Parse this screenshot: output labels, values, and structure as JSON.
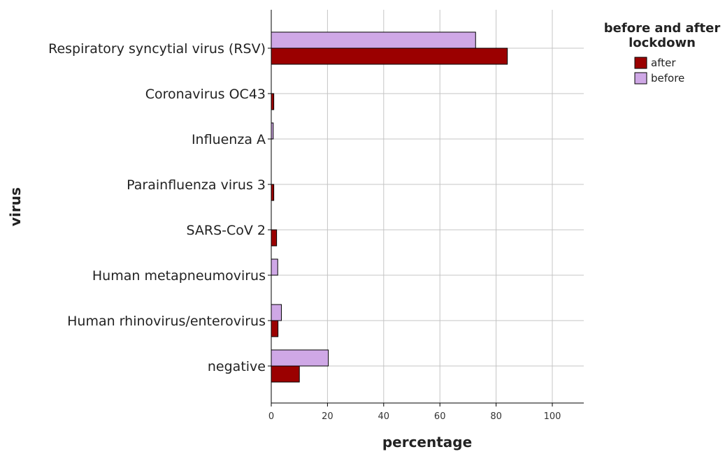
{
  "chart_data": {
    "type": "bar",
    "orientation": "horizontal",
    "title": "",
    "xlabel": "percentage",
    "ylabel": "virus",
    "xlim": [
      0,
      110
    ],
    "xticks": [
      "0",
      "20",
      "40",
      "60",
      "80",
      "100"
    ],
    "grid": true,
    "categories": [
      "Respiratory syncytial virus (RSV)",
      "Coronavirus OC43",
      "Influenza A",
      "Parainfluenza virus 3",
      "SARS-CoV 2",
      "Human metapneumovirus",
      "Human rhinovirus/enterovirus",
      "negative"
    ],
    "series": [
      {
        "name": "before",
        "color": "#cfa8e6",
        "values": [
          72.7,
          0,
          0.7,
          0,
          0,
          2.3,
          3.6,
          20.3
        ]
      },
      {
        "name": "after",
        "color": "#9b0000",
        "values": [
          84.0,
          0.9,
          0,
          0.9,
          1.9,
          0,
          2.4,
          10.0
        ]
      }
    ],
    "legend": {
      "title": "before and after lockdown",
      "title_lines": [
        "before and after",
        "lockdown"
      ],
      "placement": "top-right",
      "entries": [
        "after",
        "before"
      ]
    }
  }
}
